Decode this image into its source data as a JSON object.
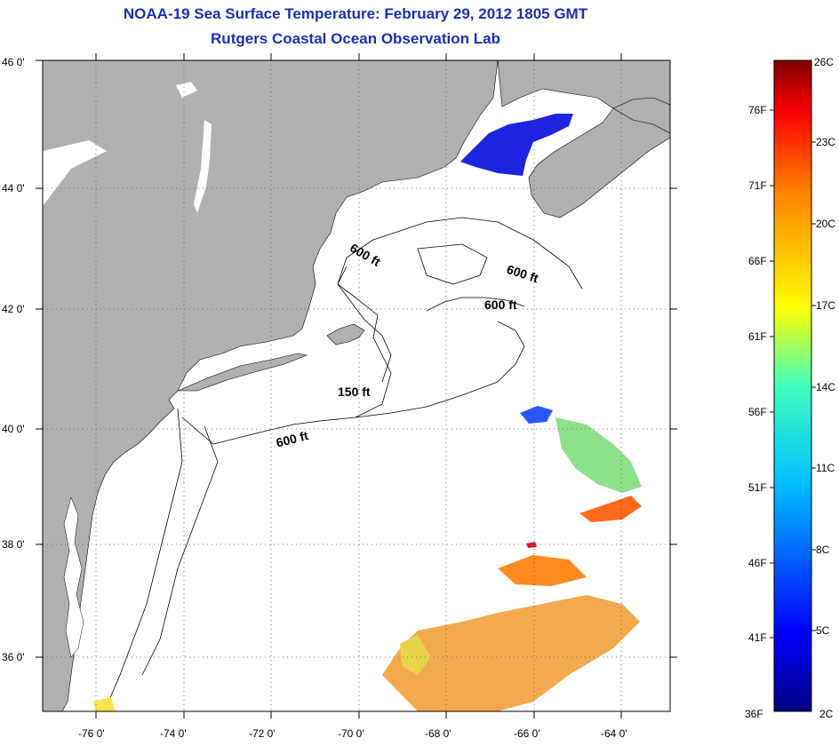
{
  "header": {
    "title": "NOAA-19 Sea Surface Temperature:  February 29, 2012 1805 GMT",
    "subtitle": "Rutgers Coastal Ocean Observation Lab"
  },
  "map": {
    "lat_labels": [
      "46 0'",
      "44 0'",
      "42 0'",
      "40 0'",
      "38 0'",
      "36 0'"
    ],
    "lon_labels": [
      "-76 0'",
      "-74 0'",
      "-72 0'",
      "-70 0'",
      "-68 0'",
      "-66 0'",
      "-64 0'"
    ],
    "contour_labels": [
      "600 ft",
      "600 ft",
      "600 ft",
      "150 ft",
      "600 ft"
    ],
    "colors": {
      "land": "#b0b0b0",
      "ocean": "#ffffff",
      "grid": "#555555"
    }
  },
  "colorbar": {
    "fahrenheit_labels": [
      "76F",
      "71F",
      "66F",
      "61F",
      "56F",
      "51F",
      "46F",
      "41F",
      "36F"
    ],
    "celsius_labels": [
      "26C",
      "23C",
      "20C",
      "17C",
      "14C",
      "11C",
      "8C",
      "5C",
      "2C"
    ],
    "colors": [
      "#7f0000",
      "#ff0000",
      "#ff7f00",
      "#ffff00",
      "#7fff7f",
      "#00ffff",
      "#007fff",
      "#0000ff",
      "#00007f"
    ]
  }
}
